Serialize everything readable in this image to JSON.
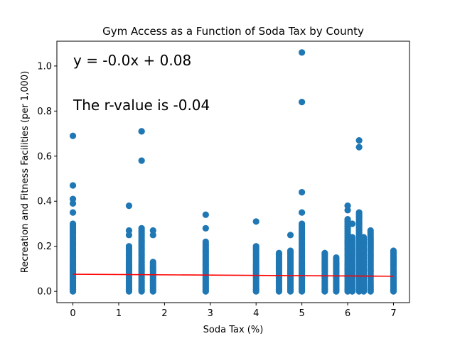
{
  "chart_data": {
    "type": "scatter",
    "title": "Gym Access as a Function of Soda Tax by County",
    "xlabel": "Soda Tax (%)",
    "ylabel": "Recreation and Fitness Facilities (per 1,000)",
    "xlim": [
      -0.35,
      7.35
    ],
    "ylim": [
      -0.05,
      1.11
    ],
    "xticks": [
      0,
      1,
      2,
      3,
      4,
      5,
      6,
      7
    ],
    "yticks": [
      0.0,
      0.2,
      0.4,
      0.6,
      0.8,
      1.0
    ],
    "xtick_labels": [
      "0",
      "1",
      "2",
      "3",
      "4",
      "5",
      "6",
      "7"
    ],
    "ytick_labels": [
      "0.0",
      "0.2",
      "0.4",
      "0.6",
      "0.8",
      "1.0"
    ],
    "grid": false,
    "colors": {
      "points": "#1f77b4",
      "regression": "#ff0000"
    },
    "annotations": [
      "y = -0.0x + 0.08",
      "The r-value is -0.04"
    ],
    "regression_line": {
      "x": [
        0,
        7
      ],
      "y": [
        0.076,
        0.067
      ]
    },
    "clusters": [
      {
        "x": 0,
        "max": 0.3,
        "outliers": [
          0.69,
          0.47,
          0.41,
          0.39,
          0.35
        ]
      },
      {
        "x": 1.225,
        "max": 0.2,
        "outliers": [
          0.38,
          0.27,
          0.25
        ]
      },
      {
        "x": 1.5,
        "max": 0.28,
        "outliers": [
          0.71,
          0.71,
          0.58
        ]
      },
      {
        "x": 1.75,
        "max": 0.13,
        "outliers": [
          0.27,
          0.25
        ]
      },
      {
        "x": 2.9,
        "max": 0.22,
        "outliers": [
          0.34,
          0.28
        ]
      },
      {
        "x": 4.0,
        "max": 0.2,
        "outliers": [
          0.31
        ]
      },
      {
        "x": 4.5,
        "max": 0.17,
        "outliers": []
      },
      {
        "x": 4.75,
        "max": 0.18,
        "outliers": [
          0.25
        ]
      },
      {
        "x": 5.0,
        "max": 0.3,
        "outliers": [
          1.06,
          0.84,
          0.44,
          0.35
        ]
      },
      {
        "x": 5.5,
        "max": 0.17,
        "outliers": []
      },
      {
        "x": 5.75,
        "max": 0.15,
        "outliers": []
      },
      {
        "x": 6.0,
        "max": 0.32,
        "outliers": [
          0.38,
          0.36
        ]
      },
      {
        "x": 6.1,
        "max": 0.24,
        "outliers": [
          0.3
        ]
      },
      {
        "x": 6.25,
        "max": 0.35,
        "outliers": [
          0.67,
          0.64
        ]
      },
      {
        "x": 6.35,
        "max": 0.24,
        "outliers": [
          0.23
        ]
      },
      {
        "x": 6.5,
        "max": 0.27,
        "outliers": []
      },
      {
        "x": 7.0,
        "max": 0.18,
        "outliers": [
          0.15,
          0.13
        ]
      }
    ]
  }
}
